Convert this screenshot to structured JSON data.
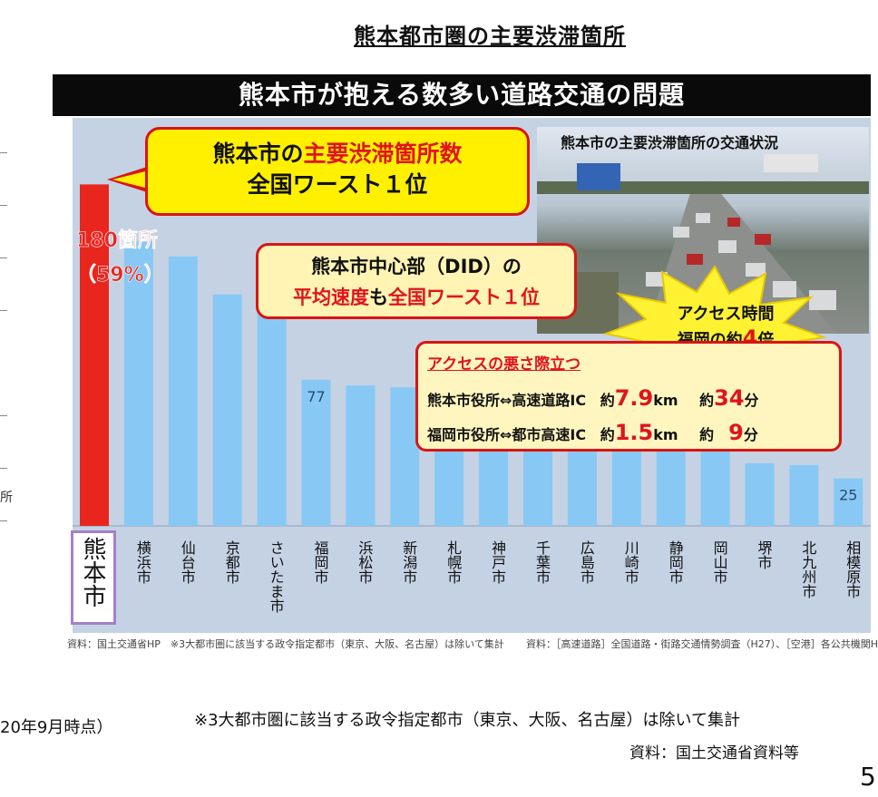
{
  "page_title": "熊本都市圏の主要渋滞箇所",
  "banner": "熊本市が抱える数多い道路交通の問題",
  "callout_worst": {
    "line1_prefix": "熊本市の",
    "line1_highlight": "主要渋滞箇所数",
    "line2": "全国ワースト１位"
  },
  "callout_did": {
    "line1": "熊本市中心部（DID）の",
    "line2_a": "平均速度",
    "line2_b": "も",
    "line2_c": "全国ワースト１位"
  },
  "photo_caption": "熊本市の主要渋滞箇所の交通状況",
  "burst": {
    "line1": "アクセス時間",
    "line2_prefix": "福岡の約",
    "line2_value": "4",
    "line2_suffix": "倍"
  },
  "access": {
    "title": "アクセスの悪さ際立つ",
    "rows": [
      {
        "route": "熊本市役所⇔高速道路IC",
        "approx_km": "約",
        "km": "7.9",
        "km_unit": "km",
        "approx_min": "約",
        "min": "34",
        "min_unit": "分"
      },
      {
        "route": "福岡市役所⇔都市高速IC",
        "approx_km": "約",
        "km": "1.5",
        "km_unit": "km",
        "approx_min": "約",
        "min": "9",
        "min_unit": "分"
      }
    ]
  },
  "left_fragment": "所",
  "chart_data": {
    "type": "bar",
    "categories": [
      "熊本市",
      "横浜市",
      "仙台市",
      "京都市",
      "さいたま市",
      "福岡市",
      "浜松市",
      "新潟市",
      "札幌市",
      "神戸市",
      "千葉市",
      "広島市",
      "川崎市",
      "静岡市",
      "岡山市",
      "堺市",
      "北九州市",
      "相模原市"
    ],
    "values": [
      180,
      150,
      142,
      122,
      112,
      77,
      74,
      73,
      50,
      50,
      50,
      50,
      50,
      50,
      50,
      33,
      32,
      25
    ],
    "colors": {
      "highlight": "#e8261e",
      "default": "#88c8f4"
    },
    "data_labels": [
      {
        "index": 0,
        "text": "180箇所",
        "text2": "（59%）"
      },
      {
        "index": 5,
        "text": "77"
      },
      {
        "index": 17,
        "text": "25"
      }
    ],
    "ylim": [
      0,
      195
    ]
  },
  "source_left": "資料：国土交通省HP　※3大都市圏に該当する政令指定都市（東京、大阪、名古屋）は除いて集計",
  "source_right": "資料：［高速道路］全国道路・街路交通情勢調査（H27）、［空港］各公共機関H",
  "footer_left": "20年9月時点）",
  "footer_note": "※3大都市圏に該当する政令指定都市（東京、大阪、名古屋）は除いて集計",
  "footer_source": "資料：国土交通省資料等",
  "page_number": "5"
}
